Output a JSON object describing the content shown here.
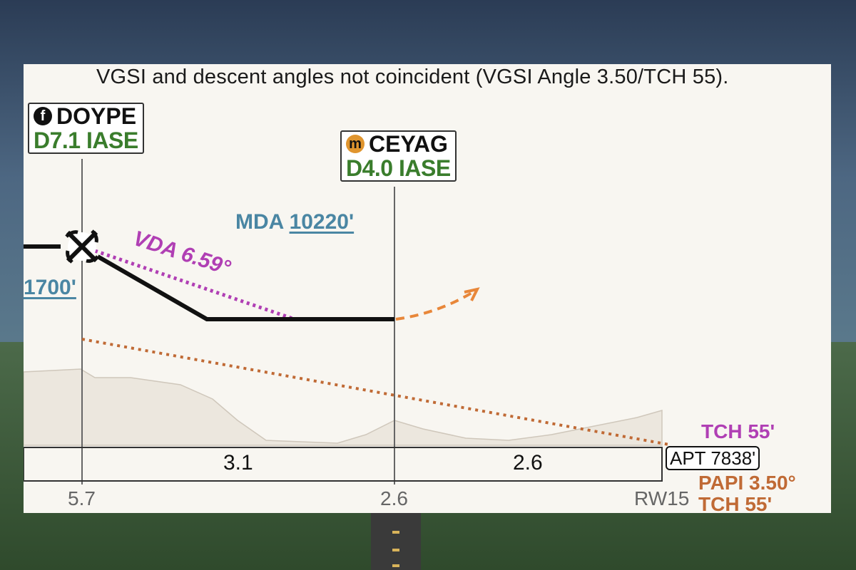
{
  "notice": "VGSI and descent angles not coincident (VGSI Angle 3.50/TCH 55).",
  "fixes": [
    {
      "badge": "f",
      "name": "DOYPE",
      "distance": "D7.1 IASE",
      "badge_color": "#111111"
    },
    {
      "badge": "m",
      "name": "CEYAG",
      "distance": "D4.0 IASE",
      "badge_color": "#e0952e"
    }
  ],
  "mda": {
    "label": "MDA",
    "value": "10220'"
  },
  "left_altitude": "1700'",
  "vda": "VDA  6.59°",
  "segments": [
    "3.1",
    "2.6"
  ],
  "ticks": [
    "5.7",
    "2.6"
  ],
  "runway": "RW15",
  "tch_top": "TCH   55'",
  "apt": "APT 7838'",
  "papi": "PAPI 3.50°",
  "tch_bottom": "TCH 55'",
  "colors": {
    "profile": "#111111",
    "vda": "#b03fb4",
    "vgsi": "#c06a35",
    "missed": "#e8873a",
    "mda": "#4a86a3",
    "fix_distance": "#3a7d2c"
  }
}
